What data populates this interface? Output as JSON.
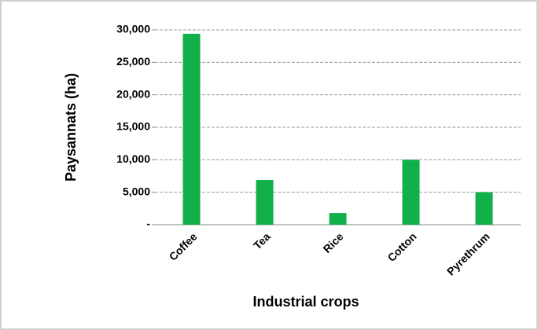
{
  "chart_data": {
    "type": "bar",
    "x_label": "Industrial crops",
    "y_label": "Paysannats (ha)",
    "categories": [
      "Coffee",
      "Tea",
      "Rice",
      "Cotton",
      "Pyrethrum"
    ],
    "values": [
      29400,
      6900,
      1800,
      10000,
      5000
    ],
    "color": "#12b04a",
    "ylim": [
      0,
      30000
    ],
    "yticks": [
      {
        "value": 0,
        "label": "-"
      },
      {
        "value": 5000,
        "label": "5,000"
      },
      {
        "value": 10000,
        "label": "10,000"
      },
      {
        "value": 15000,
        "label": "15,000"
      },
      {
        "value": 20000,
        "label": "20,000"
      },
      {
        "value": 25000,
        "label": "25,000"
      },
      {
        "value": 30000,
        "label": "30,000"
      }
    ],
    "grid": true
  }
}
